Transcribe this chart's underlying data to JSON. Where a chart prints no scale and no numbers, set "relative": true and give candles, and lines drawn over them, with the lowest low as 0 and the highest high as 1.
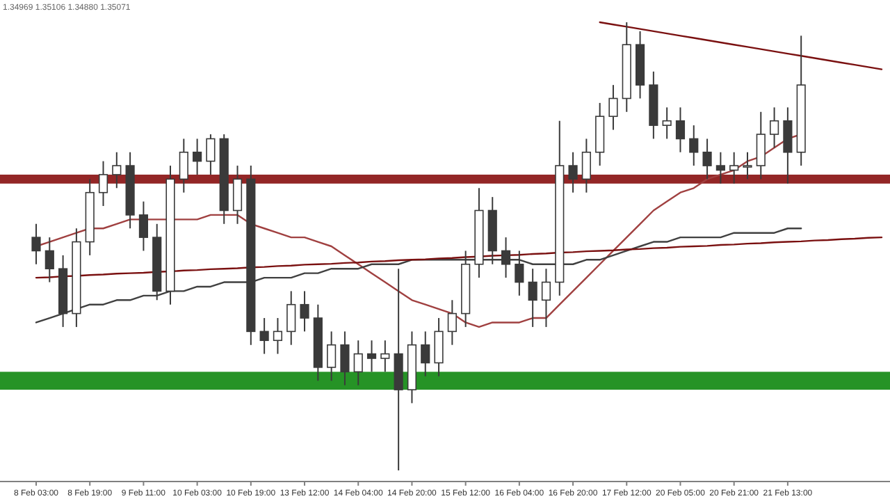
{
  "chart_data": {
    "type": "candlestick",
    "relative": true,
    "tick_labels": "x",
    "grid": false,
    "color": "#3a3a3a",
    "annotations": [
      "1.34969 1.35106 1.34880 1.35071"
    ],
    "categories": [
      "8 Feb 03:00",
      null,
      null,
      null,
      "8 Feb 19:00",
      null,
      null,
      null,
      "9 Feb 11:00",
      null,
      null,
      null,
      "10 Feb 03:00",
      null,
      null,
      null,
      "10 Feb 19:00",
      null,
      null,
      null,
      "13 Feb 12:00",
      null,
      null,
      null,
      "14 Feb 04:00",
      null,
      null,
      null,
      "14 Feb 20:00",
      null,
      null,
      null,
      "15 Feb 12:00",
      null,
      null,
      null,
      "16 Feb 04:00",
      null,
      null,
      null,
      "16 Feb 20:00",
      null,
      null,
      null,
      "17 Feb 12:00",
      null,
      null,
      null,
      "20 Feb 05:00",
      null,
      null,
      null,
      "20 Feb 21:00",
      null,
      null,
      null,
      "21 Feb 13:00",
      null,
      null,
      null,
      null,
      null,
      null,
      null
    ],
    "ohlc": [
      [
        0.52,
        0.55,
        0.46,
        0.49
      ],
      [
        0.49,
        0.52,
        0.42,
        0.45
      ],
      [
        0.45,
        0.48,
        0.32,
        0.35
      ],
      [
        0.35,
        0.54,
        0.32,
        0.51
      ],
      [
        0.51,
        0.65,
        0.48,
        0.62
      ],
      [
        0.62,
        0.69,
        0.59,
        0.66
      ],
      [
        0.66,
        0.71,
        0.63,
        0.68
      ],
      [
        0.68,
        0.71,
        0.54,
        0.57
      ],
      [
        0.57,
        0.6,
        0.49,
        0.52
      ],
      [
        0.52,
        0.55,
        0.38,
        0.4
      ],
      [
        0.4,
        0.68,
        0.37,
        0.65
      ],
      [
        0.65,
        0.74,
        0.62,
        0.71
      ],
      [
        0.71,
        0.74,
        0.66,
        0.69
      ],
      [
        0.69,
        0.75,
        0.66,
        0.74
      ],
      [
        0.74,
        0.75,
        0.55,
        0.58
      ],
      [
        0.58,
        0.68,
        0.55,
        0.65
      ],
      [
        0.65,
        0.68,
        0.28,
        0.31
      ],
      [
        0.31,
        0.34,
        0.26,
        0.29
      ],
      [
        0.29,
        0.34,
        0.26,
        0.31
      ],
      [
        0.31,
        0.4,
        0.28,
        0.37
      ],
      [
        0.37,
        0.4,
        0.31,
        0.34
      ],
      [
        0.34,
        0.37,
        0.2,
        0.23
      ],
      [
        0.23,
        0.31,
        0.2,
        0.28
      ],
      [
        0.28,
        0.31,
        0.19,
        0.22
      ],
      [
        0.22,
        0.29,
        0.19,
        0.26
      ],
      [
        0.26,
        0.29,
        0.22,
        0.25
      ],
      [
        0.25,
        0.29,
        0.22,
        0.26
      ],
      [
        0.26,
        0.45,
        0.0,
        0.18
      ],
      [
        0.18,
        0.31,
        0.15,
        0.28
      ],
      [
        0.28,
        0.31,
        0.21,
        0.24
      ],
      [
        0.24,
        0.34,
        0.21,
        0.31
      ],
      [
        0.31,
        0.38,
        0.28,
        0.35
      ],
      [
        0.35,
        0.49,
        0.32,
        0.46
      ],
      [
        0.46,
        0.63,
        0.43,
        0.58
      ],
      [
        0.58,
        0.61,
        0.46,
        0.49
      ],
      [
        0.49,
        0.52,
        0.43,
        0.46
      ],
      [
        0.46,
        0.49,
        0.39,
        0.42
      ],
      [
        0.42,
        0.45,
        0.32,
        0.38
      ],
      [
        0.38,
        0.45,
        0.32,
        0.42
      ],
      [
        0.42,
        0.78,
        0.39,
        0.68
      ],
      [
        0.68,
        0.71,
        0.62,
        0.65
      ],
      [
        0.65,
        0.74,
        0.62,
        0.71
      ],
      [
        0.71,
        0.82,
        0.68,
        0.79
      ],
      [
        0.79,
        0.86,
        0.76,
        0.83
      ],
      [
        0.83,
        1.0,
        0.8,
        0.95
      ],
      [
        0.95,
        0.98,
        0.83,
        0.86
      ],
      [
        0.86,
        0.89,
        0.74,
        0.77
      ],
      [
        0.77,
        0.81,
        0.74,
        0.78
      ],
      [
        0.78,
        0.81,
        0.71,
        0.74
      ],
      [
        0.74,
        0.77,
        0.68,
        0.71
      ],
      [
        0.71,
        0.74,
        0.65,
        0.68
      ],
      [
        0.68,
        0.71,
        0.64,
        0.67
      ],
      [
        0.67,
        0.71,
        0.64,
        0.68
      ],
      [
        0.68,
        0.71,
        0.65,
        0.68
      ],
      [
        0.68,
        0.8,
        0.65,
        0.75
      ],
      [
        0.75,
        0.81,
        0.72,
        0.78
      ],
      [
        0.78,
        0.81,
        0.64,
        0.71
      ],
      [
        0.71,
        0.97,
        0.68,
        0.86
      ],
      null,
      null,
      null,
      null,
      null,
      null
    ],
    "series": [
      {
        "type": "line",
        "color": "#a04040",
        "values": [
          0.5,
          0.51,
          0.52,
          0.53,
          0.54,
          0.54,
          0.55,
          0.56,
          0.56,
          0.56,
          0.56,
          0.56,
          0.56,
          0.57,
          0.57,
          0.57,
          0.55,
          0.54,
          0.53,
          0.52,
          0.52,
          0.51,
          0.5,
          0.48,
          0.46,
          0.44,
          0.42,
          0.4,
          0.38,
          0.37,
          0.36,
          0.35,
          0.33,
          0.32,
          0.33,
          0.33,
          0.33,
          0.34,
          0.34,
          0.37,
          0.4,
          0.43,
          0.46,
          0.49,
          0.52,
          0.55,
          0.58,
          0.6,
          0.62,
          0.63,
          0.65,
          0.66,
          0.67,
          0.69,
          0.7,
          0.72,
          0.74,
          0.75,
          null,
          null,
          null,
          null,
          null,
          null
        ]
      },
      {
        "type": "line",
        "color": "#404040",
        "values": [
          0.33,
          0.34,
          0.35,
          0.36,
          0.37,
          0.37,
          0.38,
          0.38,
          0.39,
          0.39,
          0.4,
          0.4,
          0.41,
          0.41,
          0.42,
          0.42,
          0.42,
          0.43,
          0.43,
          0.43,
          0.44,
          0.44,
          0.45,
          0.45,
          0.45,
          0.46,
          0.46,
          0.46,
          0.47,
          0.47,
          0.47,
          0.47,
          0.47,
          0.47,
          0.47,
          0.47,
          0.47,
          0.46,
          0.46,
          0.46,
          0.46,
          0.47,
          0.47,
          0.48,
          0.49,
          0.5,
          0.51,
          0.51,
          0.52,
          0.52,
          0.52,
          0.52,
          0.53,
          0.53,
          0.53,
          0.53,
          0.54,
          0.54,
          null,
          null,
          null,
          null,
          null,
          null
        ]
      },
      {
        "type": "line",
        "color": "#7a1010",
        "values": [
          null,
          null,
          null,
          null,
          null,
          null,
          null,
          null,
          null,
          null,
          null,
          null,
          null,
          null,
          null,
          null,
          null,
          null,
          null,
          null,
          null,
          null,
          null,
          null,
          null,
          null,
          null,
          null,
          null,
          null,
          null,
          null,
          null,
          null,
          null,
          null,
          null,
          null,
          null,
          null,
          null,
          null,
          1.0,
          0.995,
          0.99,
          0.985,
          0.98,
          0.975,
          0.97,
          0.965,
          0.96,
          0.955,
          0.95,
          0.945,
          0.94,
          0.935,
          0.93,
          0.925,
          0.92,
          0.915,
          0.91,
          0.905,
          0.9,
          0.895
        ]
      },
      {
        "type": "line",
        "color": "#7a1010",
        "values": [
          0.43,
          0.431,
          0.433,
          0.434,
          0.436,
          0.437,
          0.439,
          0.44,
          0.441,
          0.443,
          0.444,
          0.446,
          0.447,
          0.449,
          0.45,
          0.451,
          0.453,
          0.454,
          0.456,
          0.457,
          0.459,
          0.46,
          0.461,
          0.463,
          0.464,
          0.466,
          0.467,
          0.469,
          0.47,
          0.471,
          0.473,
          0.474,
          0.476,
          0.477,
          0.479,
          0.48,
          0.481,
          0.483,
          0.484,
          0.486,
          0.487,
          0.489,
          0.49,
          0.491,
          0.493,
          0.494,
          0.496,
          0.497,
          0.499,
          0.5,
          0.501,
          0.503,
          0.504,
          0.506,
          0.507,
          0.509,
          0.51,
          0.511,
          0.513,
          0.514,
          0.516,
          0.517,
          0.519,
          0.52
        ]
      }
    ],
    "bands": [
      {
        "axis": "y",
        "from": 0.64,
        "to": 0.66,
        "color": "#800000"
      },
      {
        "axis": "y",
        "from": 0.18,
        "to": 0.22,
        "color": "#008000"
      }
    ]
  }
}
